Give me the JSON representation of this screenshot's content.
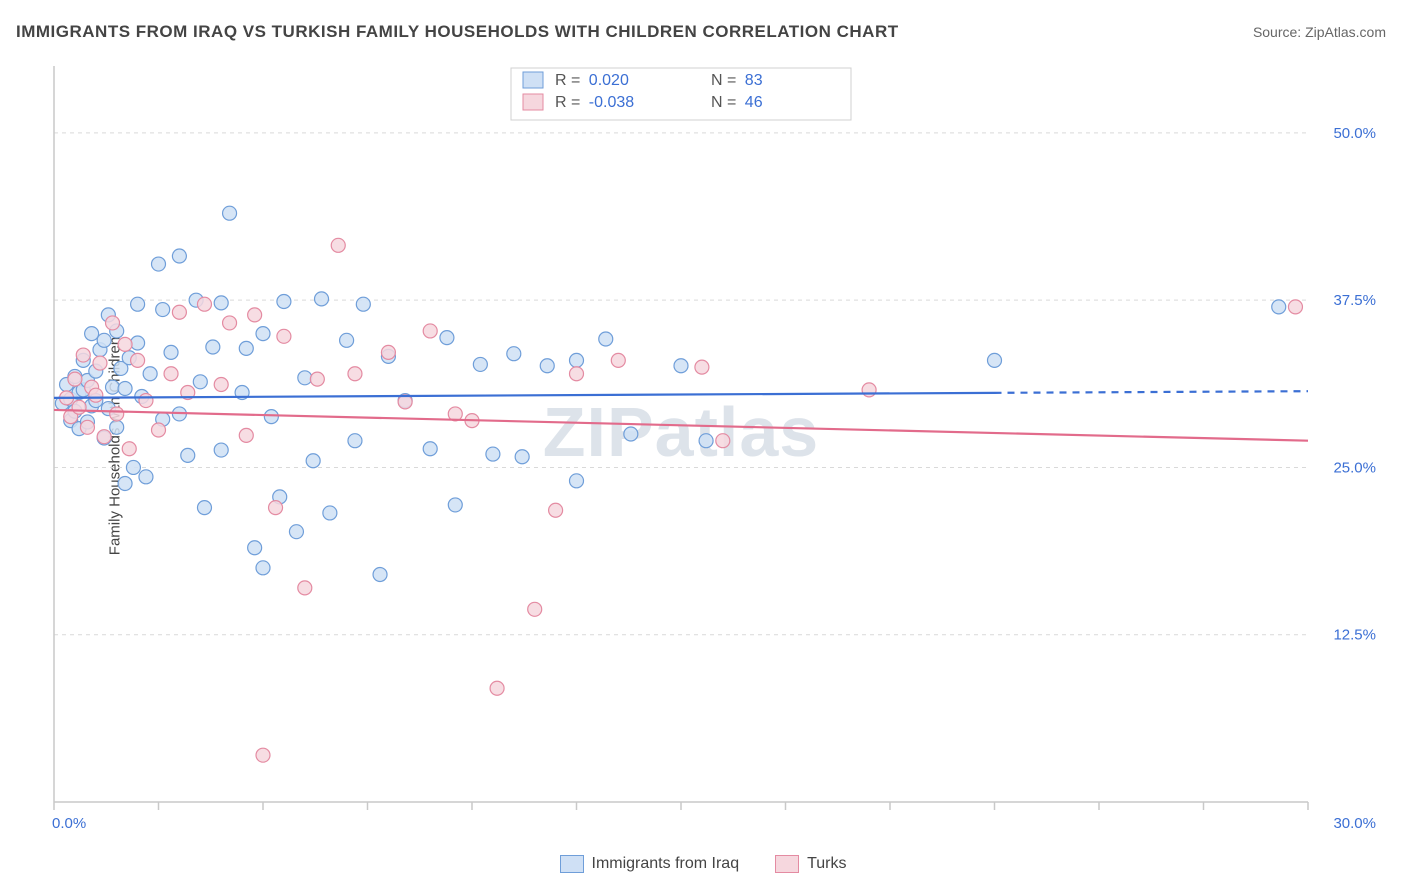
{
  "title": "IMMIGRANTS FROM IRAQ VS TURKISH FAMILY HOUSEHOLDS WITH CHILDREN CORRELATION CHART",
  "source": "Source: ZipAtlas.com",
  "ylabel": "Family Households with Children",
  "watermark": "ZIPatlas",
  "chart": {
    "type": "scatter",
    "xlim": [
      0,
      30
    ],
    "ylim": [
      0,
      55
    ],
    "x_tick_step": 2.5,
    "y_ticks": [
      12.5,
      25.0,
      37.5,
      50.0
    ],
    "x_end_labels": [
      "0.0%",
      "30.0%"
    ],
    "y_tick_labels": [
      "12.5%",
      "25.0%",
      "37.5%",
      "50.0%"
    ],
    "background_color": "#ffffff",
    "grid_color": "#d9d9d9",
    "grid_dash": "4 4",
    "axis_color": "#c9c9c9",
    "tick_color": "#c9c9c9",
    "label_color": "#3b6fd4",
    "marker_radius": 7,
    "marker_stroke_width": 1.2,
    "line_width": 2.2,
    "series": [
      {
        "name": "Immigrants from Iraq",
        "fill": "#cfe0f5",
        "stroke": "#6f9ed9",
        "line_color": "#3b6fd4",
        "R": "0.020",
        "N": "83",
        "trend_y_at_x0": 30.2,
        "trend_y_at_x30": 30.7,
        "trend_solid_until_x": 22.5,
        "points": [
          [
            0.2,
            29.8
          ],
          [
            0.3,
            31.2
          ],
          [
            0.4,
            28.5
          ],
          [
            0.4,
            30.1
          ],
          [
            0.5,
            29.2
          ],
          [
            0.5,
            31.8
          ],
          [
            0.6,
            30.6
          ],
          [
            0.6,
            27.9
          ],
          [
            0.7,
            33.0
          ],
          [
            0.7,
            30.8
          ],
          [
            0.8,
            31.5
          ],
          [
            0.8,
            28.4
          ],
          [
            0.9,
            29.6
          ],
          [
            0.9,
            35.0
          ],
          [
            1.0,
            32.2
          ],
          [
            1.0,
            30.0
          ],
          [
            1.1,
            33.8
          ],
          [
            1.2,
            27.2
          ],
          [
            1.2,
            34.5
          ],
          [
            1.3,
            29.4
          ],
          [
            1.3,
            36.4
          ],
          [
            1.4,
            31.0
          ],
          [
            1.5,
            28.0
          ],
          [
            1.5,
            35.2
          ],
          [
            1.6,
            32.4
          ],
          [
            1.7,
            23.8
          ],
          [
            1.7,
            30.9
          ],
          [
            1.8,
            33.2
          ],
          [
            1.9,
            25.0
          ],
          [
            2.0,
            37.2
          ],
          [
            2.0,
            34.3
          ],
          [
            2.1,
            30.3
          ],
          [
            2.2,
            24.3
          ],
          [
            2.3,
            32.0
          ],
          [
            2.5,
            40.2
          ],
          [
            2.6,
            36.8
          ],
          [
            2.6,
            28.6
          ],
          [
            2.8,
            33.6
          ],
          [
            3.0,
            40.8
          ],
          [
            3.0,
            29.0
          ],
          [
            3.2,
            25.9
          ],
          [
            3.4,
            37.5
          ],
          [
            3.5,
            31.4
          ],
          [
            3.6,
            22.0
          ],
          [
            3.8,
            34.0
          ],
          [
            4.0,
            37.3
          ],
          [
            4.0,
            26.3
          ],
          [
            4.2,
            44.0
          ],
          [
            4.5,
            30.6
          ],
          [
            4.6,
            33.9
          ],
          [
            4.8,
            19.0
          ],
          [
            5.0,
            35.0
          ],
          [
            5.0,
            17.5
          ],
          [
            5.2,
            28.8
          ],
          [
            5.4,
            22.8
          ],
          [
            5.5,
            37.4
          ],
          [
            5.8,
            20.2
          ],
          [
            6.0,
            31.7
          ],
          [
            6.2,
            25.5
          ],
          [
            6.4,
            37.6
          ],
          [
            6.6,
            21.6
          ],
          [
            7.0,
            34.5
          ],
          [
            7.2,
            27.0
          ],
          [
            7.4,
            37.2
          ],
          [
            7.8,
            17.0
          ],
          [
            8.0,
            33.3
          ],
          [
            8.4,
            30.0
          ],
          [
            9.0,
            26.4
          ],
          [
            9.4,
            34.7
          ],
          [
            9.6,
            22.2
          ],
          [
            10.2,
            32.7
          ],
          [
            10.5,
            26.0
          ],
          [
            11.0,
            33.5
          ],
          [
            11.2,
            25.8
          ],
          [
            11.8,
            32.6
          ],
          [
            12.5,
            33.0
          ],
          [
            12.5,
            24.0
          ],
          [
            13.2,
            34.6
          ],
          [
            13.8,
            27.5
          ],
          [
            15.0,
            32.6
          ],
          [
            15.6,
            27.0
          ],
          [
            22.5,
            33.0
          ],
          [
            29.3,
            37.0
          ]
        ]
      },
      {
        "name": "Turks",
        "fill": "#f6d7de",
        "stroke": "#e48ba2",
        "line_color": "#e26b8b",
        "R": "-0.038",
        "N": "46",
        "trend_y_at_x0": 29.3,
        "trend_y_at_x30": 27.0,
        "trend_solid_until_x": 30,
        "points": [
          [
            0.3,
            30.2
          ],
          [
            0.4,
            28.8
          ],
          [
            0.5,
            31.6
          ],
          [
            0.6,
            29.5
          ],
          [
            0.7,
            33.4
          ],
          [
            0.8,
            28.0
          ],
          [
            0.9,
            31.0
          ],
          [
            1.0,
            30.4
          ],
          [
            1.1,
            32.8
          ],
          [
            1.2,
            27.3
          ],
          [
            1.4,
            35.8
          ],
          [
            1.5,
            29.0
          ],
          [
            1.7,
            34.2
          ],
          [
            1.8,
            26.4
          ],
          [
            2.0,
            33.0
          ],
          [
            2.2,
            30.0
          ],
          [
            2.5,
            27.8
          ],
          [
            2.8,
            32.0
          ],
          [
            3.0,
            36.6
          ],
          [
            3.2,
            30.6
          ],
          [
            3.6,
            37.2
          ],
          [
            4.0,
            31.2
          ],
          [
            4.2,
            35.8
          ],
          [
            4.6,
            27.4
          ],
          [
            4.8,
            36.4
          ],
          [
            5.0,
            3.5
          ],
          [
            5.3,
            22.0
          ],
          [
            5.5,
            34.8
          ],
          [
            6.0,
            16.0
          ],
          [
            6.3,
            31.6
          ],
          [
            6.8,
            41.6
          ],
          [
            7.2,
            32.0
          ],
          [
            8.0,
            33.6
          ],
          [
            8.4,
            29.9
          ],
          [
            9.0,
            35.2
          ],
          [
            9.6,
            29.0
          ],
          [
            10.0,
            28.5
          ],
          [
            10.6,
            8.5
          ],
          [
            11.5,
            14.4
          ],
          [
            12.0,
            21.8
          ],
          [
            12.5,
            32.0
          ],
          [
            13.5,
            33.0
          ],
          [
            15.5,
            32.5
          ],
          [
            16.0,
            27.0
          ],
          [
            19.5,
            30.8
          ],
          [
            29.7,
            37.0
          ]
        ]
      }
    ]
  },
  "legend_top": {
    "box_border": "#d0d0d0",
    "box_bg": "#ffffff"
  },
  "legend_bottom": [
    {
      "label": "Immigrants from Iraq",
      "fill": "#cfe0f5",
      "stroke": "#6f9ed9"
    },
    {
      "label": "Turks",
      "fill": "#f6d7de",
      "stroke": "#e48ba2"
    }
  ]
}
